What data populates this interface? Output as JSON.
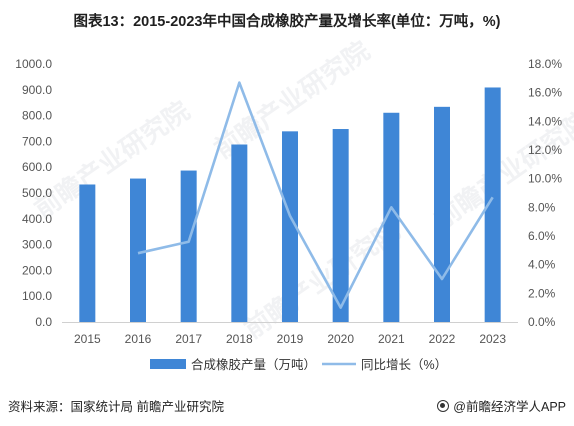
{
  "title": "图表13：2015-2023年中国合成橡胶产量及增长率(单位：万吨，%)",
  "source": "资料来源：国家统计局 前瞻产业研究院",
  "brand": "@前瞻经济学人APP",
  "watermark": "前瞻产业研究院",
  "colors": {
    "bar": "#3f86d6",
    "line": "#8fbbe8",
    "axis_text": "#555555",
    "grid": "#d9d9d9"
  },
  "chart_data": {
    "type": "bar",
    "categories": [
      "2015",
      "2016",
      "2017",
      "2018",
      "2019",
      "2020",
      "2021",
      "2022",
      "2023"
    ],
    "series": [
      {
        "name": "合成橡胶产量（万吨）",
        "type": "bar",
        "axis": "left",
        "values": [
          533,
          556,
          587,
          688,
          739,
          748,
          811,
          834,
          909
        ]
      },
      {
        "name": "同比增长（%）",
        "type": "line",
        "axis": "right",
        "values": [
          null,
          4.8,
          5.6,
          16.7,
          7.4,
          1.0,
          8.0,
          3.0,
          8.7
        ]
      }
    ],
    "y_left": {
      "ylim": [
        0,
        1000
      ],
      "ticks": [
        "0.0",
        "100.0",
        "200.0",
        "300.0",
        "400.0",
        "500.0",
        "600.0",
        "700.0",
        "800.0",
        "900.0",
        "1000.0"
      ]
    },
    "y_right": {
      "ylim": [
        0,
        18
      ],
      "ticks": [
        "0.0%",
        "2.0%",
        "4.0%",
        "6.0%",
        "8.0%",
        "10.0%",
        "12.0%",
        "14.0%",
        "16.0%",
        "18.0%"
      ]
    },
    "grid": false,
    "legend": "bottom-center"
  }
}
